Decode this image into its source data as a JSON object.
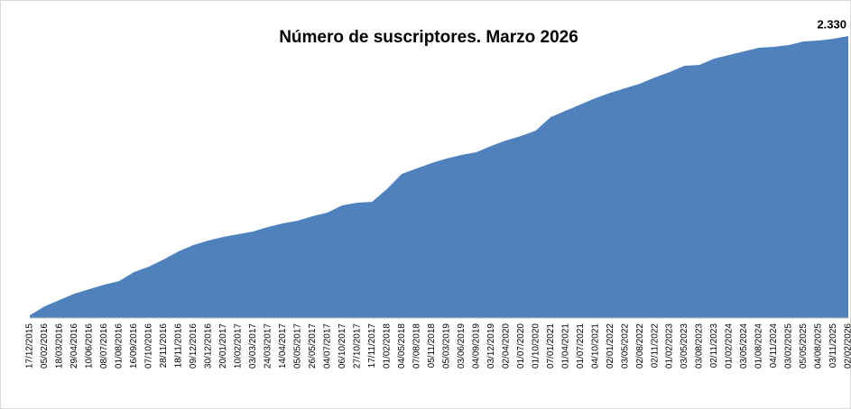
{
  "chart_data": {
    "type": "area",
    "title": "Número de suscriptores. Marzo 2026",
    "categories": [
      "17/12/2015",
      "05/02/2016",
      "18/03/2016",
      "29/04/2016",
      "10/06/2016",
      "08/07/2016",
      "01/08/2016",
      "16/09/2016",
      "07/10/2016",
      "28/11/2016",
      "18/11/2016",
      "09/12/2016",
      "30/12/2016",
      "20/01/2017",
      "10/02/2017",
      "03/03/2017",
      "24/03/2017",
      "14/04/2017",
      "05/05/2017",
      "26/05/2017",
      "04/07/2017",
      "06/10/2017",
      "27/10/2017",
      "17/11/2017",
      "01/02/2018",
      "04/05/2018",
      "07/08/2018",
      "05/11/2018",
      "05/03/2019",
      "03/06/2019",
      "04/09/2019",
      "03/12/2019",
      "02/04/2020",
      "01/07/2020",
      "01/10/2020",
      "07/01/2021",
      "01/04/2021",
      "01/07/2021",
      "04/10/2021",
      "02/01/2022",
      "03/05/2022",
      "02/08/2022",
      "02/11/2022",
      "01/02/2023",
      "03/05/2023",
      "03/08/2023",
      "02/11/2023",
      "01/02/2024",
      "03/05/2024",
      "01/08/2024",
      "04/11/2024",
      "03/02/2025",
      "05/05/2025",
      "04/08/2025",
      "03/11/2025",
      "02/02/2026"
    ],
    "values": [
      22,
      97,
      149,
      201,
      238,
      275,
      305,
      380,
      424,
      484,
      551,
      603,
      640,
      670,
      692,
      715,
      752,
      782,
      804,
      841,
      871,
      931,
      953,
      960,
      1065,
      1191,
      1236,
      1280,
      1318,
      1347,
      1370,
      1422,
      1467,
      1504,
      1548,
      1660,
      1712,
      1764,
      1816,
      1861,
      1898,
      1936,
      1988,
      2032,
      2084,
      2092,
      2144,
      2174,
      2203,
      2233,
      2241,
      2256,
      2285,
      2293,
      2308,
      2330
    ],
    "value_labels": [
      null,
      null,
      null,
      null,
      null,
      null,
      null,
      null,
      null,
      null,
      null,
      null,
      null,
      null,
      null,
      null,
      null,
      null,
      null,
      null,
      null,
      null,
      null,
      null,
      null,
      null,
      null,
      null,
      null,
      null,
      null,
      null,
      null,
      null,
      null,
      null,
      null,
      null,
      null,
      null,
      null,
      null,
      null,
      null,
      null,
      null,
      null,
      null,
      null,
      null,
      null,
      null,
      null,
      null,
      null,
      "2.330"
    ],
    "color": "#4f81bd",
    "ylim": [
      0,
      2330
    ]
  }
}
